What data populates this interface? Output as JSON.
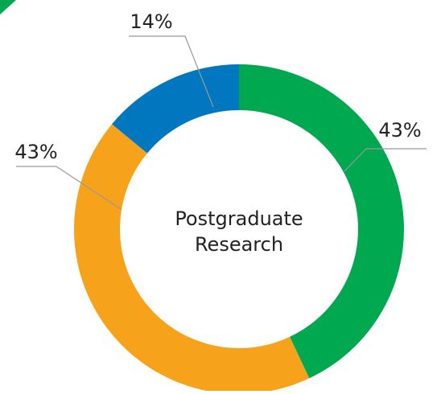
{
  "chart_data": {
    "type": "donut",
    "center_label": [
      "Postgraduate",
      "Research"
    ],
    "categories": [
      null,
      null,
      null
    ],
    "values": [
      43,
      43,
      14
    ],
    "value_labels": [
      "43%",
      "43%",
      "14%"
    ],
    "colors": [
      "#00a84f",
      "#f7a21b",
      "#0077bf"
    ]
  }
}
